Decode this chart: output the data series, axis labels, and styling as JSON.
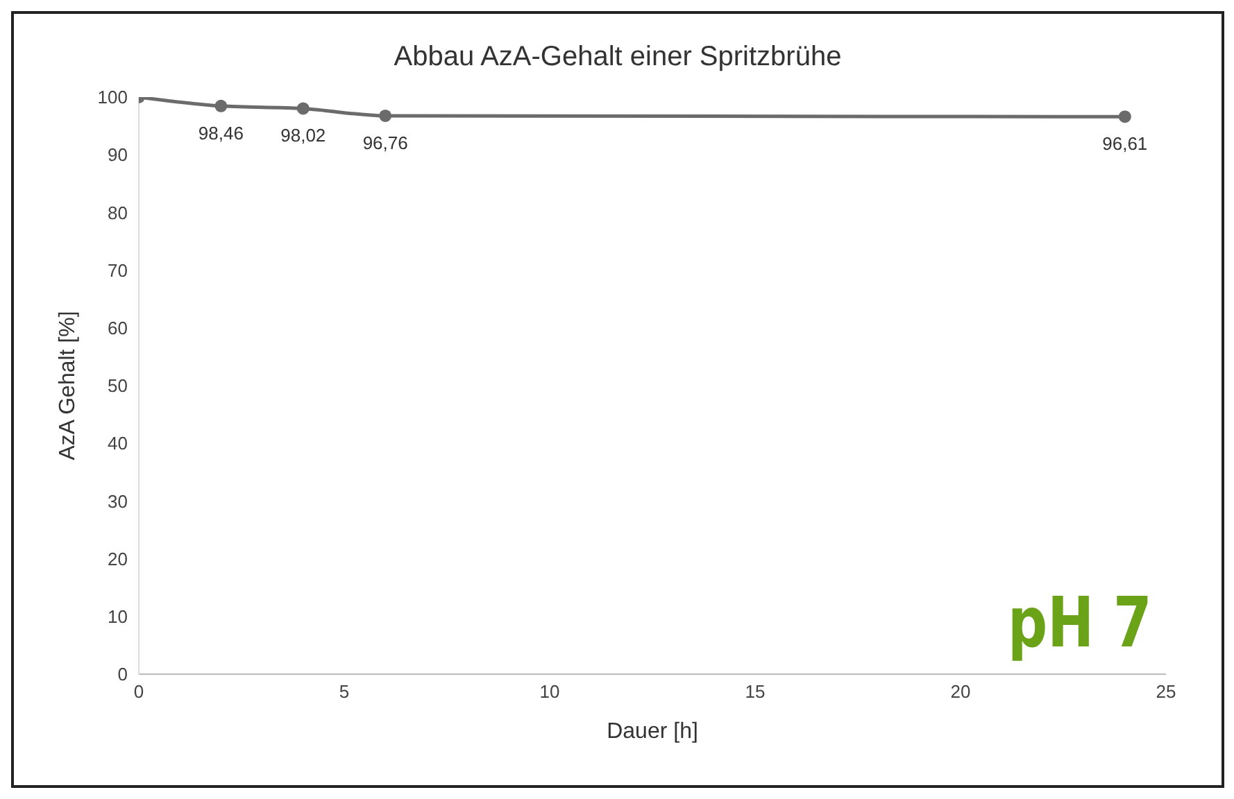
{
  "chart_data": {
    "type": "line",
    "title": "Abbau AzA-Gehalt einer Spritzbrühe",
    "xlabel": "Dauer [h]",
    "ylabel": "AzA Gehalt [%]",
    "x": [
      0,
      2,
      4,
      6,
      24
    ],
    "series": [
      {
        "color": "#6b6b6b",
        "values": [
          100,
          98.46,
          98.02,
          96.76,
          96.61
        ],
        "value_labels": [
          null,
          "98,46",
          "98,02",
          "96,76",
          "96,61"
        ]
      }
    ],
    "xlim": [
      0,
      25
    ],
    "xticks": [
      0,
      5,
      10,
      15,
      20,
      25
    ],
    "ylim": [
      0,
      100
    ],
    "yticks": [
      0,
      10,
      20,
      30,
      40,
      50,
      60,
      70,
      80,
      90,
      100
    ],
    "grid": false,
    "marker": "circle",
    "line_style": "solid",
    "annotations": [
      "pH 7"
    ]
  }
}
